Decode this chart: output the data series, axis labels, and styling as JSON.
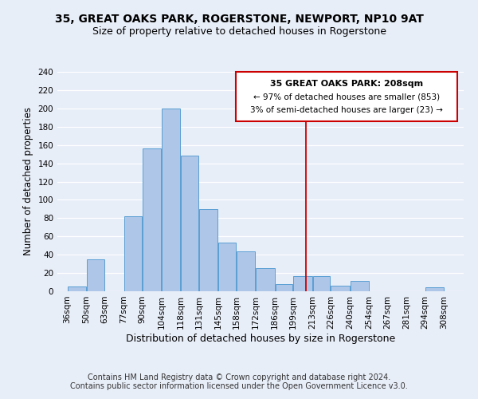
{
  "title": "35, GREAT OAKS PARK, ROGERSTONE, NEWPORT, NP10 9AT",
  "subtitle": "Size of property relative to detached houses in Rogerstone",
  "xlabel": "Distribution of detached houses by size in Rogerstone",
  "ylabel": "Number of detached properties",
  "bar_left_edges": [
    36,
    50,
    63,
    77,
    90,
    104,
    118,
    131,
    145,
    158,
    172,
    186,
    199,
    213,
    226,
    240,
    254,
    267,
    281,
    294
  ],
  "bar_widths": [
    14,
    13,
    14,
    13,
    14,
    14,
    13,
    14,
    13,
    14,
    14,
    13,
    14,
    13,
    14,
    14,
    13,
    14,
    13,
    14
  ],
  "bar_heights": [
    5,
    35,
    0,
    82,
    156,
    200,
    148,
    90,
    53,
    44,
    25,
    8,
    17,
    17,
    6,
    11,
    0,
    0,
    0,
    4
  ],
  "bar_color": "#aec6e8",
  "bar_edge_color": "#5a9fd4",
  "vline_x": 208,
  "vline_color": "#cc0000",
  "xlim": [
    29,
    322
  ],
  "ylim": [
    0,
    240
  ],
  "yticks": [
    0,
    20,
    40,
    60,
    80,
    100,
    120,
    140,
    160,
    180,
    200,
    220,
    240
  ],
  "xtick_labels": [
    "36sqm",
    "50sqm",
    "63sqm",
    "77sqm",
    "90sqm",
    "104sqm",
    "118sqm",
    "131sqm",
    "145sqm",
    "158sqm",
    "172sqm",
    "186sqm",
    "199sqm",
    "213sqm",
    "226sqm",
    "240sqm",
    "254sqm",
    "267sqm",
    "281sqm",
    "294sqm",
    "308sqm"
  ],
  "xtick_positions": [
    36,
    50,
    63,
    77,
    90,
    104,
    118,
    131,
    145,
    158,
    172,
    186,
    199,
    213,
    226,
    240,
    254,
    267,
    281,
    294,
    308
  ],
  "annotation_title": "35 GREAT OAKS PARK: 208sqm",
  "annotation_line1": "← 97% of detached houses are smaller (853)",
  "annotation_line2": "3% of semi-detached houses are larger (23) →",
  "footer_line1": "Contains HM Land Registry data © Crown copyright and database right 2024.",
  "footer_line2": "Contains public sector information licensed under the Open Government Licence v3.0.",
  "background_color": "#e8eef8",
  "grid_color": "#ffffff",
  "title_fontsize": 10,
  "subtitle_fontsize": 9,
  "tick_fontsize": 7.5,
  "ylabel_fontsize": 8.5,
  "xlabel_fontsize": 9,
  "footer_fontsize": 7,
  "annot_fontsize_title": 8,
  "annot_fontsize_body": 7.5
}
